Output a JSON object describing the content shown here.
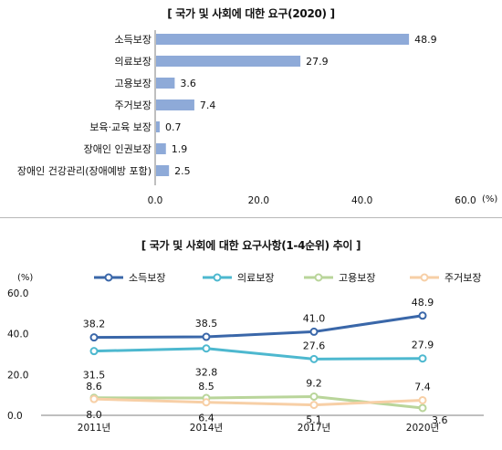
{
  "chart_data": [
    {
      "type": "bar",
      "orientation": "horizontal",
      "title": "[ 국가 및 사회에 대한 요구(2020) ]",
      "categories": [
        "소득보장",
        "의료보장",
        "고용보장",
        "주거보장",
        "보육·교육 보장",
        "장애인 인권보장",
        "장애인 건강관리(장애예방 포함)"
      ],
      "values": [
        48.9,
        27.9,
        3.6,
        7.4,
        0.7,
        1.9,
        2.5
      ],
      "value_labels": [
        "48.9",
        "27.9",
        "3.6",
        "7.4",
        "0.7",
        "1.9",
        "2.5"
      ],
      "xticks": [
        "0.0",
        "20.0",
        "40.0",
        "60.0"
      ],
      "xlim": [
        0,
        60
      ],
      "unit": "(%)",
      "bar_color": "#8eaad8",
      "grid": false
    },
    {
      "type": "line",
      "title": "[ 국가 및 사회에 대한 요구사항(1-4순위) 추이 ]",
      "x": [
        "2011년",
        "2014년",
        "2017년",
        "2020년"
      ],
      "ylim": [
        0,
        60
      ],
      "yticks": [
        "60.0",
        "40.0",
        "20.0",
        "0.0"
      ],
      "unit": "(%)",
      "legend_position": "top",
      "grid": false,
      "series": [
        {
          "name": "소득보장",
          "values": [
            38.2,
            38.5,
            41.0,
            48.9
          ],
          "labels": [
            "38.2",
            "38.5",
            "41.0",
            "48.9"
          ],
          "color": "#3a67a9"
        },
        {
          "name": "의료보장",
          "values": [
            31.5,
            32.8,
            27.6,
            27.9
          ],
          "labels": [
            "31.5",
            "32.8",
            "27.6",
            "27.9"
          ],
          "color": "#4db8cf"
        },
        {
          "name": "고용보장",
          "values": [
            8.6,
            8.5,
            9.2,
            3.6
          ],
          "labels": [
            "8.6",
            "8.5",
            "9.2",
            "3.6"
          ],
          "color": "#b9d59a"
        },
        {
          "name": "주거보장",
          "values": [
            8.0,
            6.4,
            5.1,
            7.4
          ],
          "labels": [
            "8.0",
            "6.4",
            "5.1",
            "7.4"
          ],
          "color": "#f7cfa6"
        }
      ]
    }
  ]
}
